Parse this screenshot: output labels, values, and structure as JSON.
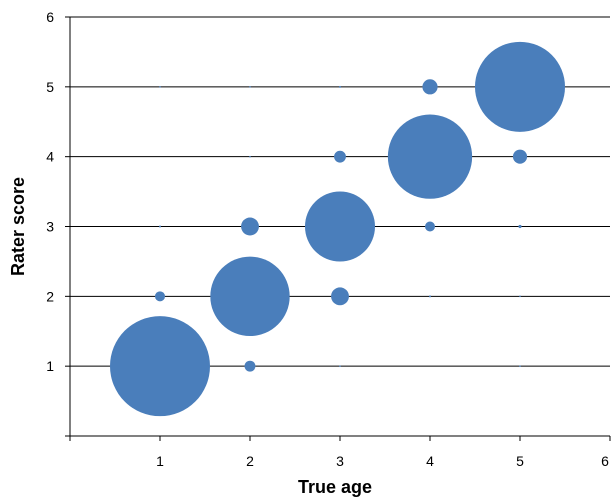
{
  "chart_data": {
    "type": "scatter",
    "bubble": true,
    "title": "",
    "xlabel": "True age",
    "ylabel": "Rater score",
    "xlim": [
      0,
      6
    ],
    "ylim": [
      0,
      6
    ],
    "x_ticks": [
      1,
      2,
      3,
      4,
      5,
      6
    ],
    "y_ticks": [
      1,
      2,
      3,
      4,
      5,
      6
    ],
    "x_tick_labels": [
      "1",
      "2",
      "3",
      "4",
      "5",
      "6"
    ],
    "y_tick_labels": [
      "1",
      "2",
      "3",
      "4",
      "5",
      "6"
    ],
    "grid": "horizontal",
    "color": "#4a7ebb",
    "points": [
      {
        "x": 1,
        "y": 1,
        "size": 100
      },
      {
        "x": 1,
        "y": 2,
        "size": 1.0
      },
      {
        "x": 1,
        "y": 3,
        "size": 0.04
      },
      {
        "x": 1,
        "y": 5,
        "size": 0.01
      },
      {
        "x": 2,
        "y": 1,
        "size": 1.2
      },
      {
        "x": 2,
        "y": 2,
        "size": 63
      },
      {
        "x": 2,
        "y": 3,
        "size": 3.2
      },
      {
        "x": 2,
        "y": 4,
        "size": 0.02
      },
      {
        "x": 2,
        "y": 5,
        "size": 0.01
      },
      {
        "x": 3,
        "y": 1,
        "size": 0.01
      },
      {
        "x": 3,
        "y": 2,
        "size": 3.2
      },
      {
        "x": 3,
        "y": 3,
        "size": 49
      },
      {
        "x": 3,
        "y": 4,
        "size": 1.4
      },
      {
        "x": 3,
        "y": 5,
        "size": 0.04
      },
      {
        "x": 4,
        "y": 2,
        "size": 0.04
      },
      {
        "x": 4,
        "y": 3,
        "size": 1.0
      },
      {
        "x": 4,
        "y": 4,
        "size": 71
      },
      {
        "x": 4,
        "y": 5,
        "size": 2.3
      },
      {
        "x": 5,
        "y": 1,
        "size": 0.01
      },
      {
        "x": 5,
        "y": 2,
        "size": 0.01
      },
      {
        "x": 5,
        "y": 3,
        "size": 0.1
      },
      {
        "x": 5,
        "y": 4,
        "size": 2.0
      },
      {
        "x": 5,
        "y": 5,
        "size": 81
      }
    ]
  }
}
